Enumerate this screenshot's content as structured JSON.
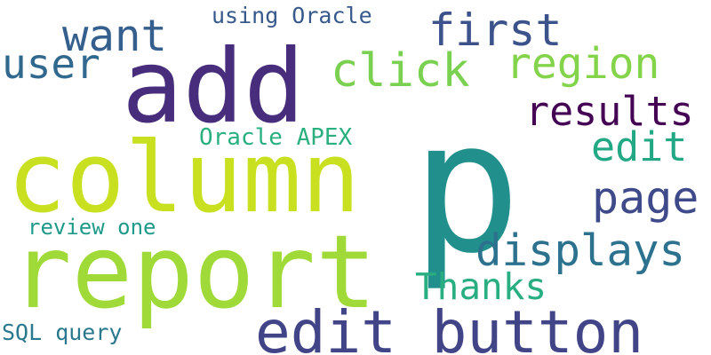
{
  "words": [
    {
      "id": "p",
      "text": "p",
      "color": "#21908C"
    },
    {
      "id": "add",
      "text": "add",
      "color": "#472D7B"
    },
    {
      "id": "column",
      "text": "column",
      "color": "#C8E020"
    },
    {
      "id": "report",
      "text": "report",
      "color": "#A0DA39"
    },
    {
      "id": "edit-button",
      "text": "edit button",
      "color": "#414487"
    },
    {
      "id": "want",
      "text": "want",
      "color": "#355F8D"
    },
    {
      "id": "first",
      "text": "first",
      "color": "#3B528B"
    },
    {
      "id": "user",
      "text": "user",
      "color": "#31688E"
    },
    {
      "id": "click",
      "text": "click",
      "color": "#7AD151"
    },
    {
      "id": "region",
      "text": "region",
      "color": "#84D44B"
    },
    {
      "id": "results",
      "text": "results",
      "color": "#440154"
    },
    {
      "id": "edit",
      "text": "edit",
      "color": "#22A884"
    },
    {
      "id": "page",
      "text": "page",
      "color": "#3E4A89"
    },
    {
      "id": "displays",
      "text": "displays",
      "color": "#2C728E"
    },
    {
      "id": "thanks",
      "text": "Thanks",
      "color": "#28AE80"
    },
    {
      "id": "oracle-apex",
      "text": "Oracle APEX",
      "color": "#2AB07F"
    },
    {
      "id": "using-oracle",
      "text": "using Oracle",
      "color": "#38598C"
    },
    {
      "id": "review-one",
      "text": "review one",
      "color": "#1F9A8A"
    },
    {
      "id": "sql-query",
      "text": "SQL query",
      "color": "#2A788E"
    }
  ]
}
